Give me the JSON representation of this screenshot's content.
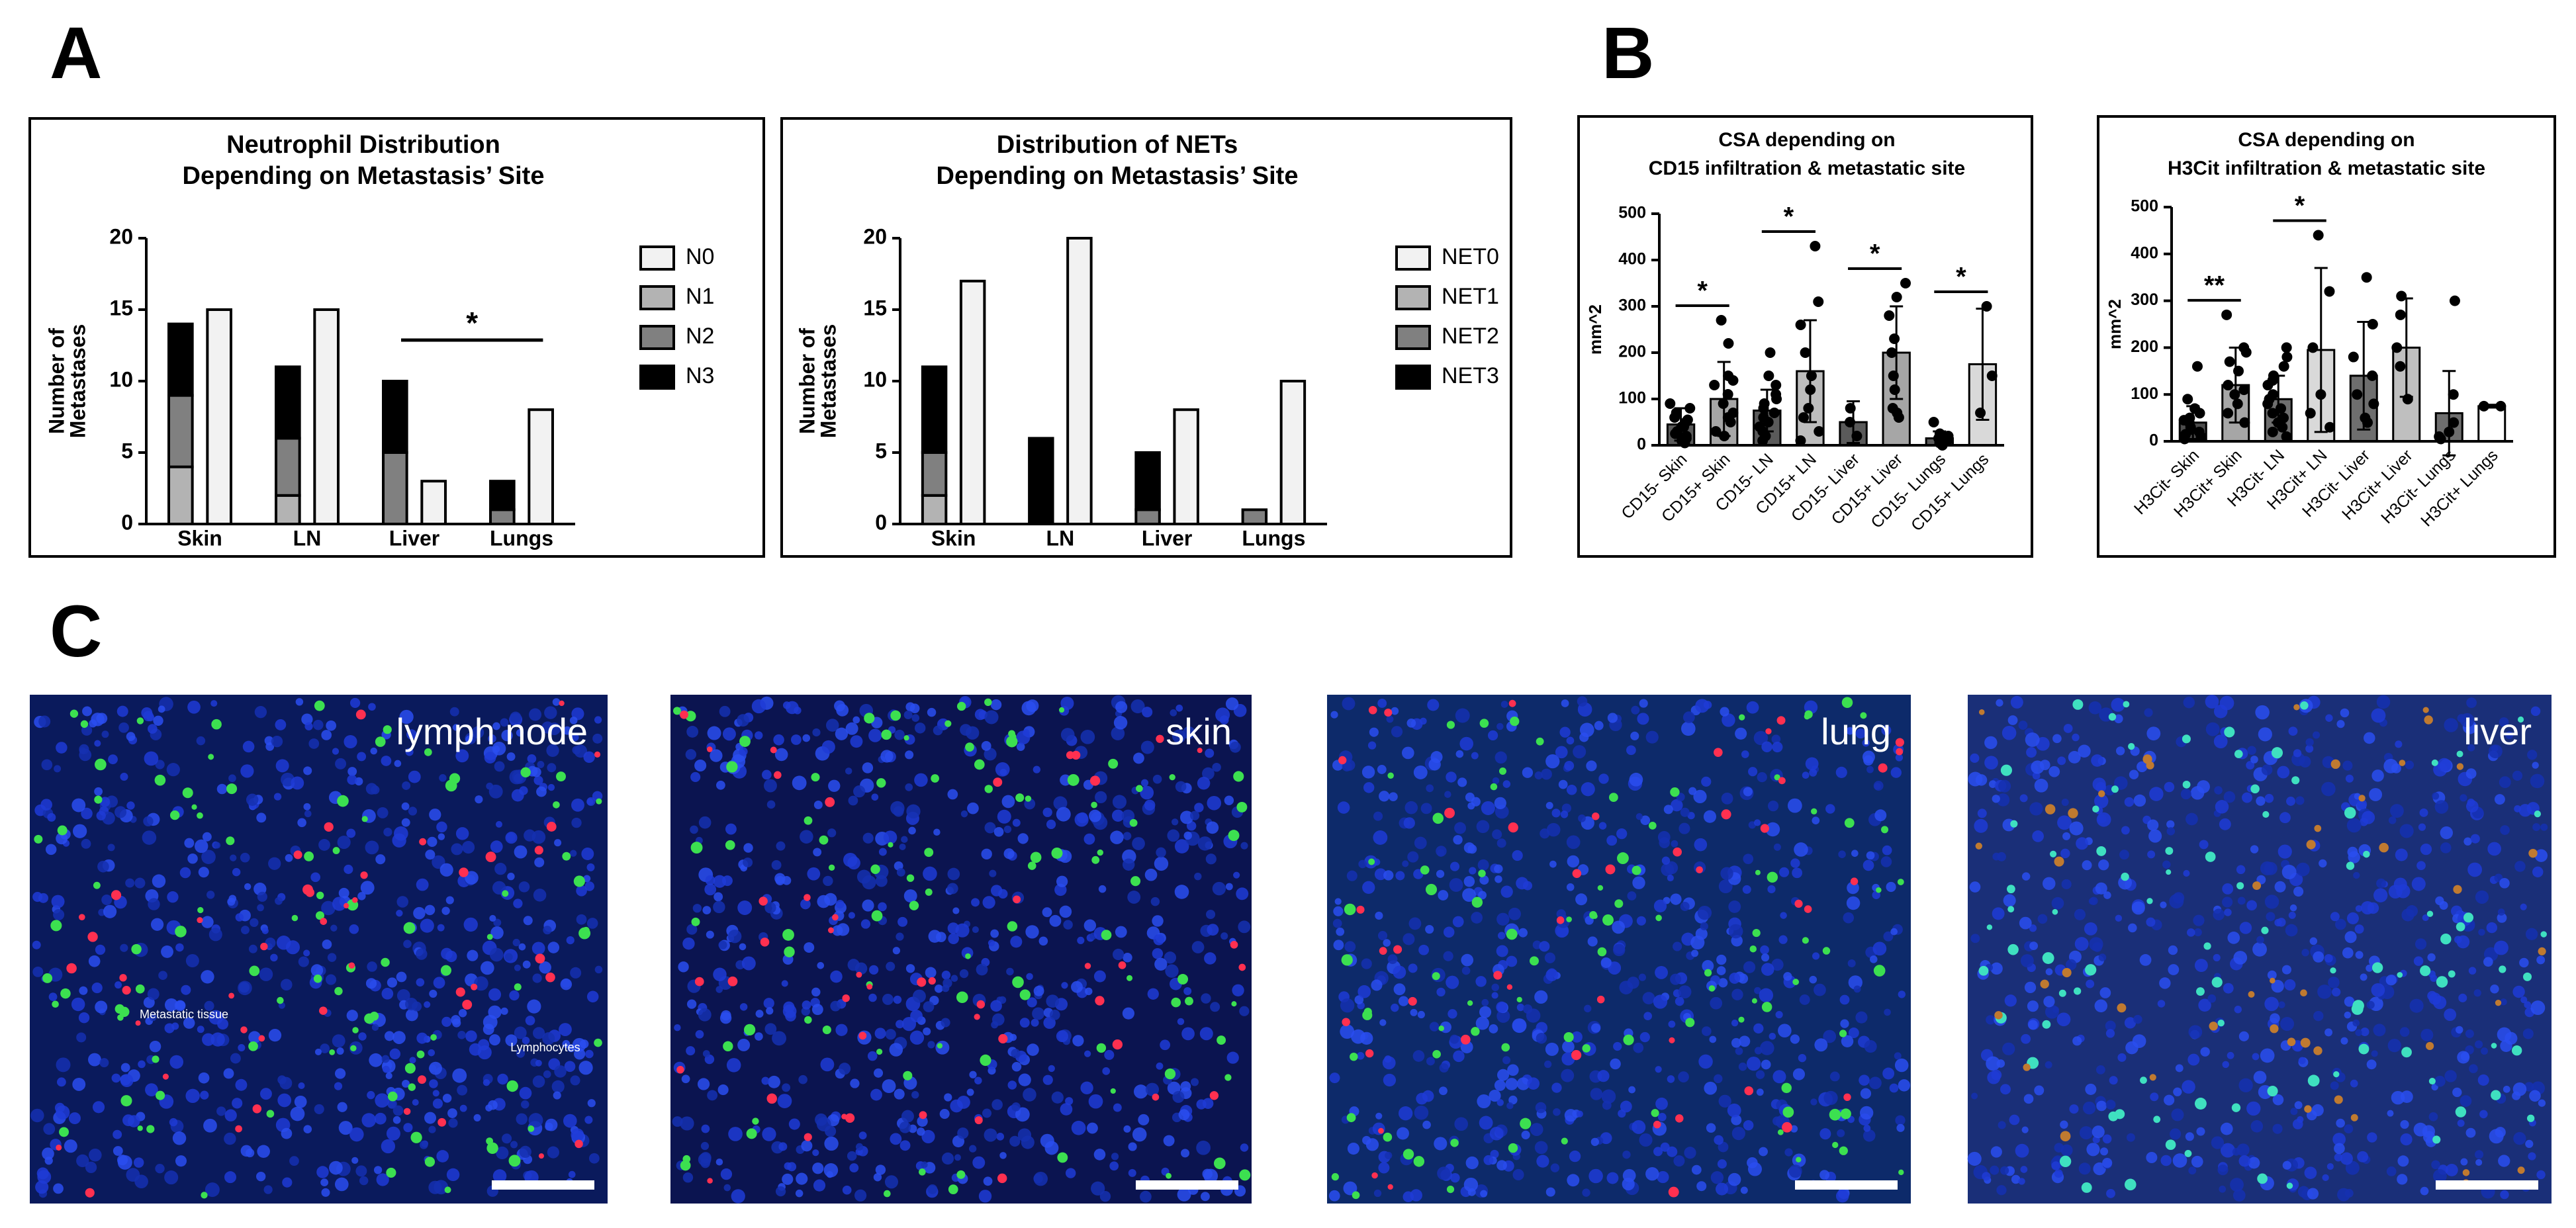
{
  "panel_labels": [
    "A",
    "B",
    "C"
  ],
  "chart_data": [
    {
      "type": "bar",
      "title": [
        "Neutrophil Distribution",
        "Depending on Metastasis’ Site"
      ],
      "ylabel": [
        "Number of",
        "Metastases"
      ],
      "categories": [
        "Skin",
        "LN",
        "Liver",
        "Lungs"
      ],
      "series": [
        {
          "name": "N0",
          "color": "#f2f2f2",
          "values": [
            15,
            15,
            3,
            8
          ]
        },
        {
          "name": "N1",
          "color": "#b3b3b3",
          "values": [
            4,
            2,
            0,
            0
          ]
        },
        {
          "name": "N2",
          "color": "#808080",
          "values": [
            5,
            4,
            5,
            1
          ]
        },
        {
          "name": "N3",
          "color": "#000000",
          "values": [
            5,
            5,
            5,
            2
          ]
        }
      ],
      "ylim": [
        0,
        20
      ],
      "yticks": [
        0,
        5,
        10,
        15,
        20
      ],
      "annotations": [
        "*"
      ]
    },
    {
      "type": "bar",
      "title": [
        "Distribution of NETs",
        "Depending on Metastasis’ Site"
      ],
      "ylabel": [
        "Number of",
        "Metastases"
      ],
      "categories": [
        "Skin",
        "LN",
        "Liver",
        "Lungs"
      ],
      "series": [
        {
          "name": "NET0",
          "color": "#f2f2f2",
          "values": [
            17,
            20,
            8,
            10
          ]
        },
        {
          "name": "NET1",
          "color": "#b3b3b3",
          "values": [
            2,
            0,
            0,
            0
          ]
        },
        {
          "name": "NET2",
          "color": "#808080",
          "values": [
            3,
            0,
            1,
            1
          ]
        },
        {
          "name": "NET3",
          "color": "#000000",
          "values": [
            6,
            6,
            4,
            0
          ]
        }
      ],
      "ylim": [
        0,
        20
      ],
      "yticks": [
        0,
        5,
        10,
        15,
        20
      ]
    },
    {
      "type": "bar",
      "title": [
        "CSA depending on",
        "CD15 infiltration & metastatic site"
      ],
      "ylabel": "mm^2",
      "categories": [
        "CD15- Skin",
        "CD15+ Skin",
        "CD15- LN",
        "CD15+ LN",
        "CD15- Liver",
        "CD15+ Liver",
        "CD15- Lungs",
        "CD15+ Lungs"
      ],
      "values": [
        45,
        100,
        75,
        160,
        50,
        200,
        15,
        175
      ],
      "errors": [
        35,
        80,
        45,
        110,
        45,
        100,
        15,
        120
      ],
      "colors": [
        "#5a5a5a",
        "#a6a6a6",
        "#5a5a5a",
        "#bdbdbd",
        "#5a5a5a",
        "#a6a6a6",
        "#5a5a5a",
        "#d9d9d9"
      ],
      "points": [
        [
          90,
          80,
          70,
          60,
          50,
          40,
          30,
          20,
          15,
          10,
          5,
          40,
          55,
          25
        ],
        [
          270,
          220,
          150,
          130,
          110,
          90,
          70,
          50,
          30,
          20,
          140,
          60
        ],
        [
          200,
          150,
          130,
          110,
          90,
          80,
          70,
          60,
          40,
          30,
          20,
          10,
          100,
          50
        ],
        [
          430,
          310,
          260,
          200,
          150,
          120,
          80,
          60,
          30,
          10
        ],
        [
          80,
          50,
          20
        ],
        [
          350,
          320,
          280,
          230,
          200,
          150,
          120,
          80,
          70,
          60
        ],
        [
          50,
          20,
          15,
          10,
          5,
          0,
          25,
          5
        ],
        [
          300,
          150,
          70
        ]
      ],
      "ylim": [
        0,
        500
      ],
      "yticks": [
        0,
        100,
        200,
        300,
        400,
        500
      ],
      "annotations": [
        "*",
        "*",
        "*",
        "*"
      ]
    },
    {
      "type": "bar",
      "title": [
        "CSA depending on",
        "H3Cit infiltration & metastatic site"
      ],
      "ylabel": "mm^2",
      "categories": [
        "H3Cit- Skin",
        "H3Cit+ Skin",
        "H3Cit- LN",
        "H3Cit+ LN",
        "H3Cit- Liver",
        "H3Cit+ Liver",
        "H3Cit- Lungs",
        "H3Cit+ Lungs"
      ],
      "values": [
        40,
        120,
        90,
        195,
        140,
        200,
        60,
        75
      ],
      "errors": [
        35,
        80,
        50,
        175,
        115,
        105,
        90,
        3
      ],
      "colors": [
        "#4d4d4d",
        "#a6a6a6",
        "#6e6e6e",
        "#d9d9d9",
        "#6e6e6e",
        "#bfbfbf",
        "#6e6e6e",
        "#ffffff"
      ],
      "points": [
        [
          160,
          90,
          70,
          50,
          40,
          30,
          20,
          10,
          5,
          60,
          45,
          25,
          15
        ],
        [
          270,
          190,
          170,
          150,
          120,
          100,
          80,
          60,
          40,
          200,
          110
        ],
        [
          200,
          180,
          160,
          140,
          120,
          100,
          90,
          80,
          70,
          60,
          50,
          40,
          30,
          20,
          10,
          130
        ],
        [
          440,
          320,
          200,
          100,
          60,
          30
        ],
        [
          350,
          250,
          180,
          140,
          100,
          80,
          50,
          40
        ],
        [
          310,
          270,
          160,
          90,
          200
        ],
        [
          300,
          100,
          40,
          20,
          10,
          5
        ],
        [
          75,
          75
        ]
      ],
      "ylim": [
        0,
        500
      ],
      "yticks": [
        0,
        100,
        200,
        300,
        400,
        500
      ],
      "annotations": [
        "**",
        "*"
      ]
    }
  ],
  "images": [
    {
      "label": "lymph node",
      "notes": [
        "Metastatic tissue",
        "Lymphocytes"
      ]
    },
    {
      "label": "skin"
    },
    {
      "label": "lung"
    },
    {
      "label": "liver"
    }
  ]
}
